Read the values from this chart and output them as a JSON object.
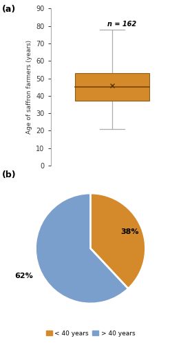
{
  "boxplot": {
    "whisker_low": 21,
    "q1": 37,
    "median": 45,
    "q3": 53,
    "whisker_high": 78,
    "mean": 46,
    "n_label": "n = 162",
    "ylabel": "Age of saffron farmers (years)",
    "ylim": [
      0,
      90
    ],
    "yticks": [
      0,
      10,
      20,
      30,
      40,
      50,
      60,
      70,
      80,
      90
    ],
    "box_color": "#D4892A",
    "whisker_color": "#aaaaaa",
    "median_color": "#7a4400",
    "mean_color": "#5a3300",
    "panel_label": "(a)"
  },
  "pie": {
    "values": [
      38,
      62
    ],
    "colors": [
      "#D4892A",
      "#7B9FCC"
    ],
    "label_38": "38%",
    "label_62": "62%",
    "panel_label": "(b)",
    "legend_labels": [
      "< 40 years",
      "> 40 years"
    ]
  },
  "background_color": "#ffffff"
}
